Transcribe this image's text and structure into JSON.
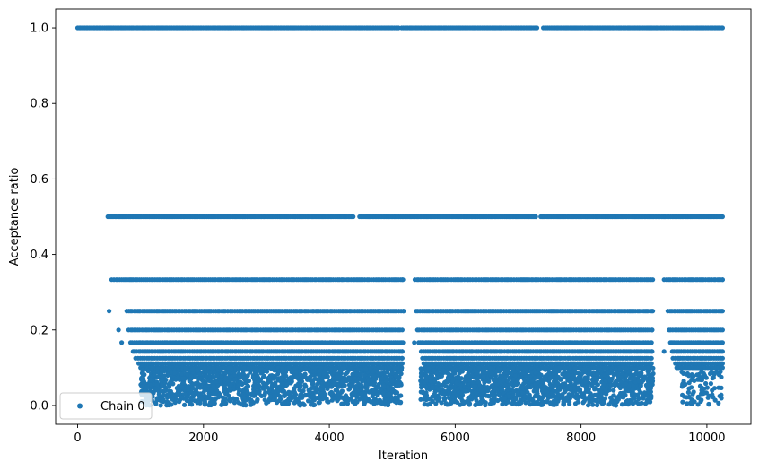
{
  "chart_data": {
    "type": "scatter",
    "title": "",
    "xlabel": "Iteration",
    "ylabel": "Acceptance ratio",
    "xlim": [
      -350,
      10700
    ],
    "ylim": [
      -0.05,
      1.05
    ],
    "xticks": [
      0,
      2000,
      4000,
      6000,
      8000,
      10000
    ],
    "yticks": [
      0.0,
      0.2,
      0.4,
      0.6,
      0.8,
      1.0
    ],
    "xtick_labels": [
      "0",
      "2000",
      "4000",
      "6000",
      "8000",
      "10000"
    ],
    "ytick_labels": [
      "0.0",
      "0.2",
      "0.4",
      "0.6",
      "0.8",
      "1.0"
    ],
    "grid": false,
    "legend": {
      "position": "lower-left",
      "entries": [
        "Chain 0"
      ]
    },
    "series": [
      {
        "name": "Chain 0",
        "color": "#1f77b4",
        "marker": "circle",
        "levels": [
          {
            "y": 1.0,
            "segments": [
              [
                0,
                5100
              ],
              [
                5150,
                7300
              ],
              [
                7400,
                10250
              ]
            ]
          },
          {
            "y": 0.5,
            "segments": [
              [
                480,
                4380
              ],
              [
                4480,
                7280
              ],
              [
                7360,
                10250
              ]
            ]
          },
          {
            "y": 0.3333,
            "segments": [
              [
                540,
                5170
              ],
              [
                5360,
                9140
              ],
              [
                9320,
                10250
              ]
            ]
          },
          {
            "y": 0.25,
            "segments": [
              [
                780,
                5180
              ],
              [
                5380,
                9140
              ],
              [
                9380,
                10250
              ]
            ]
          },
          {
            "y": 0.2,
            "segments": [
              [
                810,
                5160
              ],
              [
                5400,
                9130
              ],
              [
                9400,
                10250
              ]
            ]
          },
          {
            "y": 0.1667,
            "segments": [
              [
                840,
                5170
              ],
              [
                5420,
                9120
              ],
              [
                9420,
                10250
              ]
            ]
          },
          {
            "y": 0.1429,
            "segments": [
              [
                880,
                5160
              ],
              [
                5460,
                9130
              ],
              [
                9450,
                10250
              ]
            ]
          },
          {
            "y": 0.125,
            "segments": [
              [
                920,
                5160
              ],
              [
                5480,
                9120
              ],
              [
                9460,
                10250
              ]
            ]
          },
          {
            "y": 0.1111,
            "segments": [
              [
                970,
                5160
              ],
              [
                5500,
                9120
              ],
              [
                9500,
                10250
              ]
            ]
          },
          {
            "y": 0.1,
            "segments": [
              [
                1000,
                5150
              ],
              [
                5520,
                9120
              ],
              [
                9520,
                10250
              ]
            ]
          }
        ],
        "isolated_points": [
          {
            "x": 500,
            "y": 0.25
          },
          {
            "x": 650,
            "y": 0.2
          },
          {
            "x": 700,
            "y": 0.1667
          },
          {
            "x": 5350,
            "y": 0.1667
          },
          {
            "x": 9320,
            "y": 0.1429
          }
        ],
        "clusters": [
          {
            "x_range": [
              1000,
              5150
            ],
            "y_range": [
              0.0,
              0.1
            ],
            "count": 1400
          },
          {
            "x_range": [
              5450,
              9150
            ],
            "y_range": [
              0.0,
              0.1
            ],
            "count": 1300
          },
          {
            "x_range": [
              9600,
              10250
            ],
            "y_range": [
              0.0,
              0.09
            ],
            "count": 90
          }
        ]
      }
    ]
  }
}
